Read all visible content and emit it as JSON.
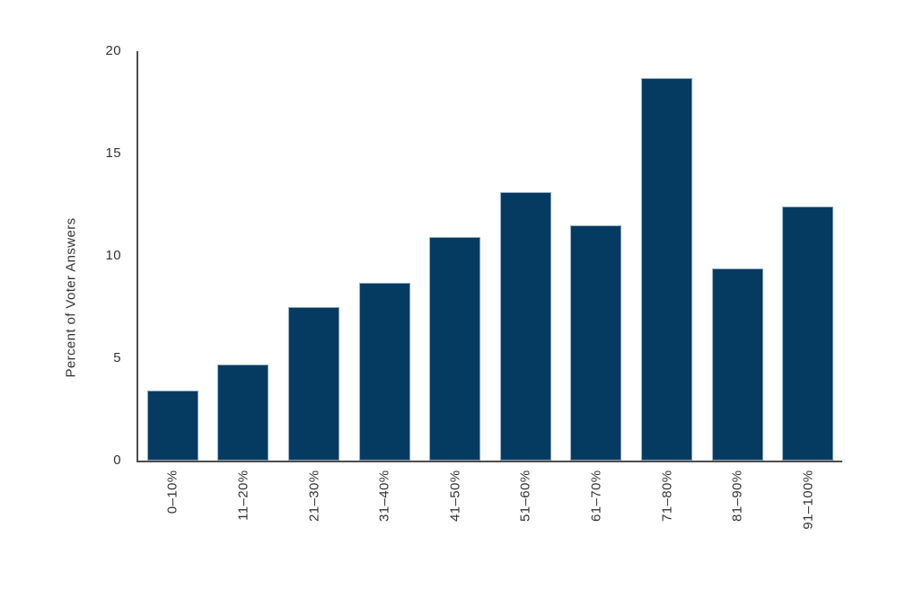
{
  "chart_data": {
    "type": "bar",
    "title": "",
    "categories": [
      "0–10%",
      "11–20%",
      "21–30%",
      "31–40%",
      "41–50%",
      "51–60%",
      "61–70%",
      "71–80%",
      "81–90%",
      "91–100%"
    ],
    "values": [
      3.4,
      4.7,
      7.5,
      8.7,
      10.9,
      13.1,
      11.5,
      18.7,
      9.4,
      12.4
    ],
    "xlabel": "",
    "ylabel": "Percent of Voter Answers",
    "yticks": [
      0,
      5,
      10,
      15,
      20
    ],
    "ylim": [
      0,
      20
    ],
    "grid": false,
    "legend": false,
    "bar_color": "#053a61",
    "bar_edge_color": "#8fa9bf",
    "axis_color": "#4d4d4d",
    "text_color": "#333333",
    "background": "#ffffff"
  }
}
